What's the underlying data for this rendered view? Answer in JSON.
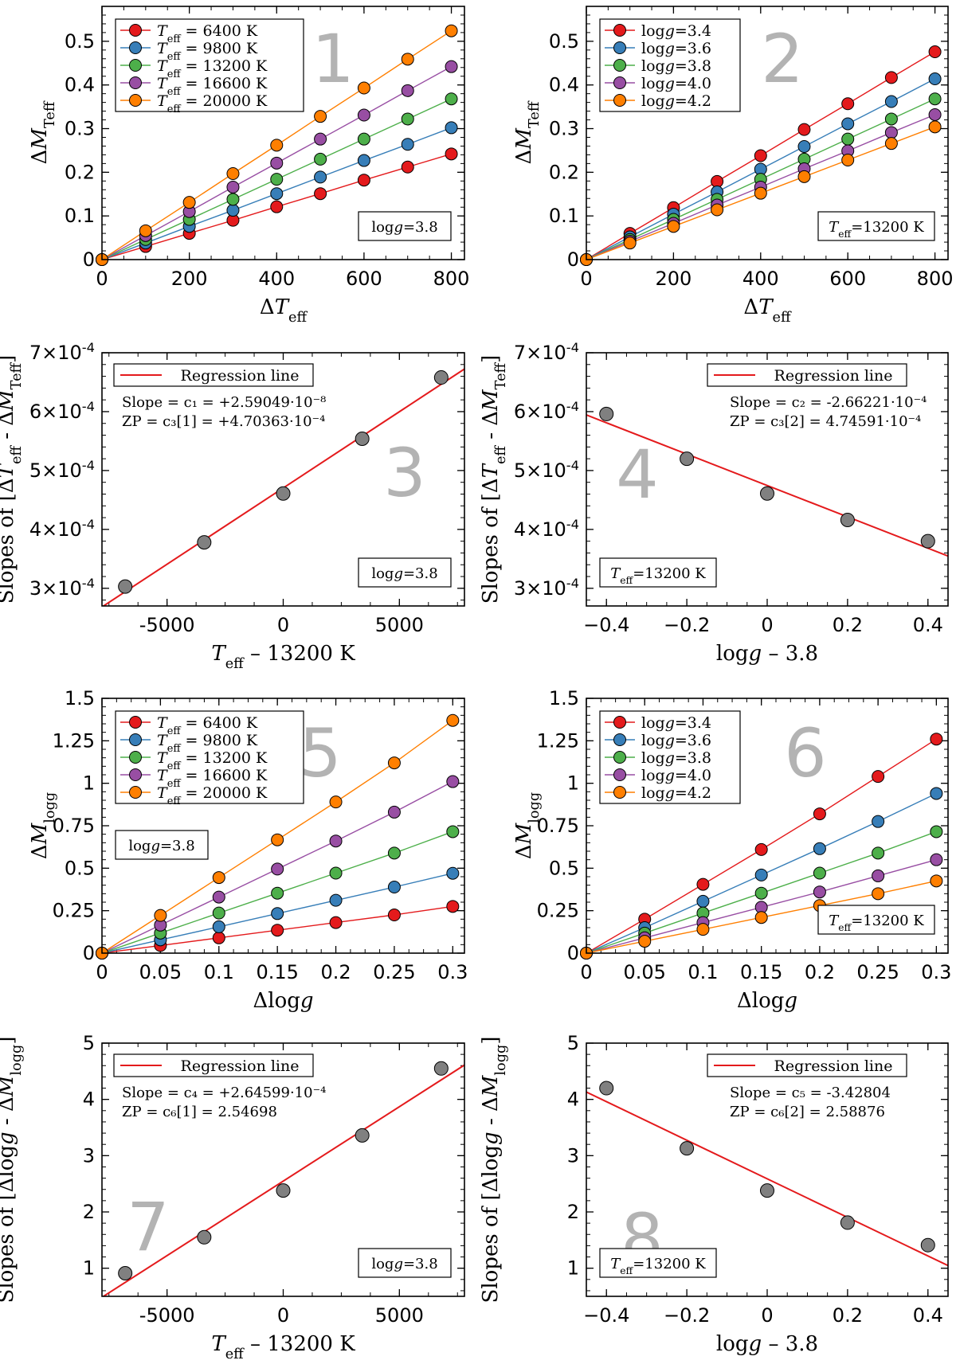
{
  "colors": {
    "red": "#e41a1c",
    "blue": "#377eb8",
    "green": "#4daf4a",
    "purple": "#984ea3",
    "orange": "#ff7f00",
    "gray": "#808080",
    "regression": "#e41a1c",
    "panel_number": "#b3b3b3"
  },
  "chart_data": [
    {
      "panel": "1",
      "type": "line",
      "xlabel": "ΔT_eff",
      "ylabel": "ΔM_Teff",
      "xlim": [
        0,
        830
      ],
      "ylim": [
        0,
        0.58
      ],
      "xticks": [
        0,
        200,
        400,
        600,
        800
      ],
      "yticks": [
        0,
        0.1,
        0.2,
        0.3,
        0.4,
        0.5
      ],
      "ytick_labels": [
        "0",
        "0.1",
        "0.2",
        "0.3",
        "0.4",
        "0.5"
      ],
      "legend_position": "top-left",
      "note": "logg=3.8",
      "note_position": "bottom-right",
      "x": [
        0,
        100,
        200,
        300,
        400,
        500,
        600,
        700,
        800
      ],
      "series": [
        {
          "name": "T_eff = 6400 K",
          "color_key": "red",
          "values": [
            0,
            0.03,
            0.06,
            0.09,
            0.121,
            0.151,
            0.182,
            0.212,
            0.242
          ]
        },
        {
          "name": "T_eff = 9800 K",
          "color_key": "blue",
          "values": [
            0,
            0.038,
            0.076,
            0.113,
            0.151,
            0.189,
            0.227,
            0.264,
            0.302
          ]
        },
        {
          "name": "T_eff = 13200 K",
          "color_key": "green",
          "values": [
            0,
            0.046,
            0.092,
            0.138,
            0.184,
            0.23,
            0.276,
            0.322,
            0.368
          ]
        },
        {
          "name": "T_eff = 16600 K",
          "color_key": "purple",
          "values": [
            0,
            0.055,
            0.11,
            0.166,
            0.221,
            0.276,
            0.331,
            0.387,
            0.442
          ]
        },
        {
          "name": "T_eff = 20000 K",
          "color_key": "orange",
          "values": [
            0,
            0.066,
            0.131,
            0.197,
            0.262,
            0.328,
            0.393,
            0.459,
            0.524
          ]
        }
      ]
    },
    {
      "panel": "2",
      "type": "line",
      "xlabel": "ΔT_eff",
      "ylabel": "ΔM_Teff",
      "xlim": [
        0,
        830
      ],
      "ylim": [
        0,
        0.58
      ],
      "xticks": [
        0,
        200,
        400,
        600,
        800
      ],
      "yticks": [
        0,
        0.1,
        0.2,
        0.3,
        0.4,
        0.5
      ],
      "ytick_labels": [
        "0",
        "0.1",
        "0.2",
        "0.3",
        "0.4",
        "0.5"
      ],
      "legend_position": "top-left",
      "note": "T_eff=13200 K",
      "note_position": "bottom-right",
      "x": [
        0,
        100,
        200,
        300,
        400,
        500,
        600,
        700,
        800
      ],
      "series": [
        {
          "name": "logg=3.4",
          "color_key": "red",
          "values": [
            0,
            0.06,
            0.119,
            0.179,
            0.238,
            0.298,
            0.357,
            0.417,
            0.476
          ]
        },
        {
          "name": "logg=3.6",
          "color_key": "blue",
          "values": [
            0,
            0.052,
            0.104,
            0.155,
            0.207,
            0.259,
            0.311,
            0.362,
            0.414
          ]
        },
        {
          "name": "logg=3.8",
          "color_key": "green",
          "values": [
            0,
            0.046,
            0.092,
            0.138,
            0.184,
            0.23,
            0.276,
            0.322,
            0.368
          ]
        },
        {
          "name": "logg=4.0",
          "color_key": "purple",
          "values": [
            0,
            0.042,
            0.083,
            0.125,
            0.166,
            0.208,
            0.249,
            0.291,
            0.332
          ]
        },
        {
          "name": "logg=4.2",
          "color_key": "orange",
          "values": [
            0,
            0.038,
            0.076,
            0.114,
            0.152,
            0.19,
            0.228,
            0.266,
            0.304
          ]
        }
      ]
    },
    {
      "panel": "3",
      "type": "scatter",
      "xlabel": "T_eff – 13200 K",
      "ylabel": "Slopes of [ΔT_eff - ΔM_Teff]",
      "xlim": [
        -7800,
        7800
      ],
      "ylim": [
        0.00027,
        0.0007
      ],
      "xticks": [
        -5000,
        0,
        5000
      ],
      "yticks": [
        0.0003,
        0.0004,
        0.0005,
        0.0006,
        0.0007
      ],
      "ytick_labels": [
        "3×10^-4",
        "4×10^-4",
        "5×10^-4",
        "6×10^-4",
        "7×10^-4"
      ],
      "legend_position": "top-left",
      "legend_entry": "Regression line",
      "stats": [
        "Slope = c₁ = +2.59049·10⁻⁸",
        "ZP = c₃[1] = +4.70363·10⁻⁴"
      ],
      "note": "logg=3.8",
      "note_position": "bottom-right",
      "x": [
        -6800,
        -3400,
        0,
        3400,
        6800
      ],
      "values": [
        0.000303,
        0.000378,
        0.000461,
        0.000554,
        0.000658
      ],
      "regression": {
        "slope": 2.59049e-08,
        "intercept": 0.000470363
      }
    },
    {
      "panel": "4",
      "type": "scatter",
      "xlabel": "logg – 3.8",
      "ylabel": "Slopes of [ΔT_eff - ΔM_Teff]",
      "xlim": [
        -0.45,
        0.45
      ],
      "ylim": [
        0.00027,
        0.0007
      ],
      "xticks": [
        -0.4,
        -0.2,
        0,
        0.2,
        0.4
      ],
      "xtick_labels": [
        "−0.4",
        "−0.2",
        "0",
        "0.2",
        "0.4"
      ],
      "yticks": [
        0.0003,
        0.0004,
        0.0005,
        0.0006,
        0.0007
      ],
      "ytick_labels": [
        "3×10^-4",
        "4×10^-4",
        "5×10^-4",
        "6×10^-4",
        "7×10^-4"
      ],
      "legend_position": "top-right",
      "legend_entry": "Regression line",
      "stats": [
        "Slope = c₂ =  -2.66221·10⁻⁴",
        "ZP = c₃[2] = 4.74591·10⁻⁴"
      ],
      "note": "T_eff=13200 K",
      "note_position": "bottom-left",
      "x": [
        -0.4,
        -0.2,
        0,
        0.2,
        0.4
      ],
      "values": [
        0.000596,
        0.00052,
        0.000461,
        0.000416,
        0.00038
      ],
      "regression": {
        "slope": -0.000266221,
        "intercept": 0.000474591
      }
    },
    {
      "panel": "5",
      "type": "line",
      "xlabel": "Δlogg",
      "ylabel": "ΔM_logg",
      "xlim": [
        0,
        0.31
      ],
      "ylim": [
        0,
        1.5
      ],
      "xticks": [
        0,
        0.05,
        0.1,
        0.15,
        0.2,
        0.25,
        0.3
      ],
      "xtick_labels": [
        "0",
        "0.05",
        "0.1",
        "0.15",
        "0.2",
        "0.25",
        "0.3"
      ],
      "yticks": [
        0,
        0.25,
        0.5,
        0.75,
        1,
        1.25,
        1.5
      ],
      "ytick_labels": [
        "0",
        "0.25",
        "0.5",
        "0.75",
        "1",
        "1.25",
        "1.5"
      ],
      "legend_position": "top-left",
      "note": "logg=3.8",
      "note_position": "upper-left",
      "x": [
        0,
        0.05,
        0.1,
        0.15,
        0.2,
        0.25,
        0.3
      ],
      "series": [
        {
          "name": "T_eff = 6400 K",
          "color_key": "red",
          "values": [
            0,
            0.045,
            0.09,
            0.135,
            0.18,
            0.225,
            0.275
          ]
        },
        {
          "name": "T_eff = 9800 K",
          "color_key": "blue",
          "values": [
            0,
            0.078,
            0.155,
            0.233,
            0.311,
            0.389,
            0.47
          ]
        },
        {
          "name": "T_eff = 13200 K",
          "color_key": "green",
          "values": [
            0,
            0.118,
            0.236,
            0.353,
            0.471,
            0.589,
            0.715
          ]
        },
        {
          "name": "T_eff = 16600 K",
          "color_key": "purple",
          "values": [
            0,
            0.165,
            0.33,
            0.495,
            0.66,
            0.83,
            1.01
          ]
        },
        {
          "name": "T_eff = 20000 K",
          "color_key": "orange",
          "values": [
            0,
            0.222,
            0.445,
            0.667,
            0.89,
            1.12,
            1.37
          ]
        }
      ]
    },
    {
      "panel": "6",
      "type": "line",
      "xlabel": "Δlogg",
      "ylabel": "ΔM_logg",
      "xlim": [
        0,
        0.31
      ],
      "ylim": [
        0,
        1.5
      ],
      "xticks": [
        0,
        0.05,
        0.1,
        0.15,
        0.2,
        0.25,
        0.3
      ],
      "xtick_labels": [
        "0",
        "0.05",
        "0.1",
        "0.15",
        "0.2",
        "0.25",
        "0.3"
      ],
      "yticks": [
        0,
        0.25,
        0.5,
        0.75,
        1,
        1.25,
        1.5
      ],
      "ytick_labels": [
        "0",
        "0.25",
        "0.5",
        "0.75",
        "1",
        "1.25",
        "1.5"
      ],
      "legend_position": "top-left",
      "note": "T_eff=13200 K",
      "note_position": "bottom-right",
      "x": [
        0,
        0.05,
        0.1,
        0.15,
        0.2,
        0.25,
        0.3
      ],
      "series": [
        {
          "name": "logg=3.4",
          "color_key": "red",
          "values": [
            0,
            0.2,
            0.405,
            0.61,
            0.82,
            1.04,
            1.26
          ]
        },
        {
          "name": "logg=3.6",
          "color_key": "blue",
          "values": [
            0,
            0.15,
            0.305,
            0.46,
            0.615,
            0.775,
            0.94
          ]
        },
        {
          "name": "logg=3.8",
          "color_key": "green",
          "values": [
            0,
            0.118,
            0.236,
            0.353,
            0.471,
            0.589,
            0.715
          ]
        },
        {
          "name": "logg=4.0",
          "color_key": "purple",
          "values": [
            0,
            0.09,
            0.18,
            0.27,
            0.36,
            0.455,
            0.55
          ]
        },
        {
          "name": "logg=4.2",
          "color_key": "orange",
          "values": [
            0,
            0.07,
            0.14,
            0.21,
            0.28,
            0.35,
            0.425
          ]
        }
      ]
    },
    {
      "panel": "7",
      "type": "scatter",
      "xlabel": "T_eff – 13200 K",
      "ylabel": "Slopes of [Δlogg - ΔM_logg]",
      "xlim": [
        -7800,
        7800
      ],
      "ylim": [
        0.5,
        5.0
      ],
      "xticks": [
        -5000,
        0,
        5000
      ],
      "yticks": [
        1,
        2,
        3,
        4,
        5
      ],
      "ytick_labels": [
        "1",
        "2",
        "3",
        "4",
        "5"
      ],
      "legend_position": "top-left",
      "legend_entry": "Regression line",
      "stats": [
        "Slope = c₄ =  +2.64599·10⁻⁴",
        "ZP = c₆[1] = 2.54698"
      ],
      "note": "logg=3.8",
      "note_position": "bottom-right",
      "x": [
        -6800,
        -3400,
        0,
        3400,
        6800
      ],
      "values": [
        0.91,
        1.55,
        2.38,
        3.36,
        4.55
      ],
      "regression": {
        "slope": 0.000264599,
        "intercept": 2.54698
      }
    },
    {
      "panel": "8",
      "type": "scatter",
      "xlabel": "logg – 3.8",
      "ylabel": "Slopes of [Δlogg - ΔM_logg]",
      "xlim": [
        -0.45,
        0.45
      ],
      "ylim": [
        0.5,
        5.0
      ],
      "xticks": [
        -0.4,
        -0.2,
        0,
        0.2,
        0.4
      ],
      "xtick_labels": [
        "−0.4",
        "−0.2",
        "0",
        "0.2",
        "0.4"
      ],
      "yticks": [
        1,
        2,
        3,
        4,
        5
      ],
      "ytick_labels": [
        "1",
        "2",
        "3",
        "4",
        "5"
      ],
      "legend_position": "top-right",
      "legend_entry": "Regression line",
      "stats": [
        "Slope = c₅ = -3.42804",
        "ZP = c₆[2] = 2.58876"
      ],
      "note": "T_eff=13200 K",
      "note_position": "bottom-left",
      "x": [
        -0.4,
        -0.2,
        0,
        0.2,
        0.4
      ],
      "values": [
        4.2,
        3.13,
        2.38,
        1.81,
        1.41
      ],
      "regression": {
        "slope": -3.42804,
        "intercept": 2.58876
      }
    }
  ]
}
